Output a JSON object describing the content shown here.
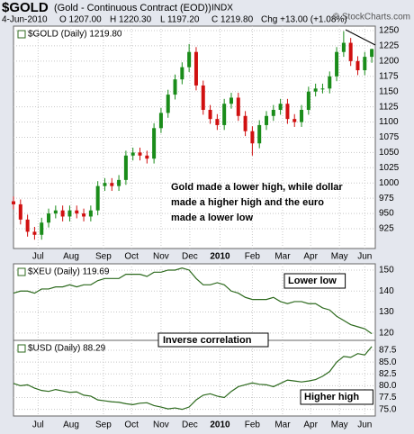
{
  "header": {
    "symbol": "$GOLD",
    "name": "(Gold - Continuous Contract (EOD))",
    "exchange": "INDX",
    "date": "4-Jun-2010",
    "open": "O 1207.00",
    "high": "H 1220.30",
    "low": "L 1197.20",
    "close": "C 1219.80",
    "change": "Chg +13.00 (+1.08%)",
    "credit": "© StockCharts.com"
  },
  "annotations": [
    "Inverse correlation"
  ],
  "chart_data": [
    {
      "type": "candlestick",
      "label": "$GOLD (Daily) 1219.80",
      "up_color": "#1a8c1a",
      "down_color": "#d01010",
      "annotation_lines": [
        "Gold made a lower high, while dollar",
        "made a higher high and the euro",
        "made a lower low"
      ],
      "x": [
        0,
        1,
        2,
        3,
        4,
        5,
        6,
        7,
        8,
        9,
        10,
        11,
        12,
        13,
        14,
        15,
        16,
        17,
        18,
        19,
        20,
        21,
        22,
        23,
        24,
        25,
        26,
        27,
        28,
        29,
        30,
        31,
        32,
        33,
        34,
        35,
        36,
        37,
        38,
        39,
        40,
        41,
        42,
        43,
        44,
        45,
        46,
        47,
        48,
        49,
        50,
        51
      ],
      "open": [
        970,
        965,
        940,
        920,
        915,
        935,
        950,
        955,
        945,
        955,
        950,
        945,
        955,
        995,
        1000,
        995,
        1005,
        1045,
        1050,
        1045,
        1040,
        1090,
        1115,
        1145,
        1170,
        1190,
        1215,
        1160,
        1120,
        1105,
        1095,
        1130,
        1140,
        1110,
        1085,
        1065,
        1095,
        1110,
        1120,
        1130,
        1105,
        1100,
        1120,
        1150,
        1155,
        1155,
        1175,
        1215,
        1230,
        1200,
        1185,
        1207
      ],
      "high": [
        978,
        973,
        948,
        928,
        943,
        958,
        963,
        963,
        963,
        963,
        958,
        963,
        1003,
        1008,
        1008,
        1013,
        1053,
        1058,
        1058,
        1053,
        1098,
        1123,
        1153,
        1178,
        1198,
        1228,
        1223,
        1168,
        1128,
        1113,
        1138,
        1148,
        1148,
        1118,
        1093,
        1103,
        1118,
        1128,
        1138,
        1138,
        1113,
        1128,
        1158,
        1163,
        1163,
        1183,
        1223,
        1249,
        1238,
        1208,
        1215,
        1220.3
      ],
      "low": [
        957,
        932,
        912,
        907,
        907,
        927,
        942,
        937,
        937,
        942,
        937,
        937,
        947,
        987,
        987,
        987,
        997,
        1037,
        1037,
        1032,
        1032,
        1082,
        1107,
        1137,
        1162,
        1182,
        1152,
        1112,
        1097,
        1087,
        1087,
        1122,
        1102,
        1077,
        1045,
        1057,
        1087,
        1102,
        1112,
        1097,
        1092,
        1092,
        1112,
        1142,
        1147,
        1147,
        1167,
        1207,
        1192,
        1177,
        1177,
        1197.2
      ],
      "close": [
        965,
        940,
        920,
        915,
        935,
        950,
        955,
        945,
        955,
        950,
        945,
        955,
        995,
        1000,
        995,
        1005,
        1045,
        1050,
        1045,
        1040,
        1090,
        1115,
        1145,
        1170,
        1190,
        1215,
        1160,
        1120,
        1105,
        1095,
        1130,
        1140,
        1110,
        1085,
        1065,
        1095,
        1110,
        1120,
        1130,
        1105,
        1100,
        1120,
        1150,
        1155,
        1155,
        1175,
        1215,
        1230,
        1200,
        1185,
        1207,
        1219.8
      ],
      "xlim": [
        0,
        51.5
      ],
      "xticks": [
        {
          "value": 3.5,
          "label": "Jul"
        },
        {
          "value": 8.2,
          "label": "Aug"
        },
        {
          "value": 12.8,
          "label": "Sep"
        },
        {
          "value": 16.8,
          "label": "Oct"
        },
        {
          "value": 21,
          "label": "Nov"
        },
        {
          "value": 25.1,
          "label": "Dec"
        },
        {
          "value": 29.4,
          "label": "2010"
        },
        {
          "value": 34,
          "label": "Feb"
        },
        {
          "value": 38.3,
          "label": "Mar"
        },
        {
          "value": 42.3,
          "label": "Apr"
        },
        {
          "value": 46.4,
          "label": "May"
        },
        {
          "value": 50,
          "label": "Jun"
        }
      ],
      "ylim": [
        892.5,
        1257.4
      ],
      "yticks": [
        925,
        950,
        975,
        1000,
        1025,
        1050,
        1075,
        1100,
        1125,
        1150,
        1175,
        1200,
        1225,
        1250
      ],
      "grid": true
    },
    {
      "type": "line",
      "label": "$XEU (Daily) 119.69",
      "annotation_lines": [
        "Lower low"
      ],
      "x": [
        0,
        1,
        2,
        3,
        4,
        5,
        6,
        7,
        8,
        9,
        10,
        11,
        12,
        13,
        14,
        15,
        16,
        17,
        18,
        19,
        20,
        21,
        22,
        23,
        24,
        25,
        26,
        27,
        28,
        29,
        30,
        31,
        32,
        33,
        34,
        35,
        36,
        37,
        38,
        39,
        40,
        41,
        42,
        43,
        44,
        45,
        46,
        47,
        48,
        49,
        50,
        51
      ],
      "series": [
        {
          "name": "$XEU",
          "color": "#2d6a1e",
          "values": [
            139,
            140,
            140,
            139,
            141,
            141,
            142,
            142,
            143,
            142,
            143,
            143,
            145,
            146,
            146,
            146,
            148,
            148,
            148,
            147,
            149,
            149,
            150,
            150,
            151,
            150,
            146,
            143,
            143,
            144,
            143,
            140,
            139,
            137,
            136,
            136,
            136,
            137,
            135,
            134,
            135,
            135,
            134,
            134,
            132,
            131,
            128,
            126,
            124,
            123,
            122,
            119.69
          ]
        }
      ],
      "xlim": [
        0,
        51.5
      ],
      "ylim": [
        116.5,
        153
      ],
      "yticks": [
        120,
        130,
        140,
        150
      ],
      "grid": true
    },
    {
      "type": "line",
      "label": "$USD (Daily) 88.29",
      "annotation_lines": [
        "Higher high"
      ],
      "x": [
        0,
        1,
        2,
        3,
        4,
        5,
        6,
        7,
        8,
        9,
        10,
        11,
        12,
        13,
        14,
        15,
        16,
        17,
        18,
        19,
        20,
        21,
        22,
        23,
        24,
        25,
        26,
        27,
        28,
        29,
        30,
        31,
        32,
        33,
        34,
        35,
        36,
        37,
        38,
        39,
        40,
        41,
        42,
        43,
        44,
        45,
        46,
        47,
        48,
        49,
        50,
        51
      ],
      "series": [
        {
          "name": "$USD",
          "color": "#2d6a1e",
          "values": [
            80.5,
            80.0,
            80.2,
            79.5,
            79.0,
            78.8,
            79.2,
            78.9,
            78.6,
            78.7,
            78.0,
            77.8,
            77.0,
            76.8,
            76.6,
            76.5,
            76.2,
            76.0,
            76.3,
            76.4,
            75.8,
            75.5,
            75.1,
            75.3,
            75.0,
            75.5,
            77.0,
            78.0,
            78.3,
            77.8,
            77.5,
            78.8,
            79.8,
            80.2,
            80.6,
            80.3,
            80.2,
            79.8,
            80.5,
            81.2,
            81.0,
            80.8,
            81.0,
            81.3,
            82.0,
            83.0,
            85.0,
            86.2,
            86.0,
            86.8,
            86.5,
            88.29
          ]
        }
      ],
      "xlim": [
        0,
        51.5
      ],
      "xticks": [
        {
          "value": 3.5,
          "label": "Jul"
        },
        {
          "value": 8.2,
          "label": "Aug"
        },
        {
          "value": 12.8,
          "label": "Sep"
        },
        {
          "value": 16.8,
          "label": "Oct"
        },
        {
          "value": 21,
          "label": "Nov"
        },
        {
          "value": 25.1,
          "label": "Dec"
        },
        {
          "value": 29.4,
          "label": "2010"
        },
        {
          "value": 34,
          "label": "Feb"
        },
        {
          "value": 38.3,
          "label": "Mar"
        },
        {
          "value": 42.3,
          "label": "Apr"
        },
        {
          "value": 46.4,
          "label": "May"
        },
        {
          "value": 50,
          "label": "Jun"
        }
      ],
      "ylim": [
        73.6,
        89.6
      ],
      "yticks": [
        {
          "value": 75,
          "label": "75.0"
        },
        {
          "value": 77.5,
          "label": "77.5"
        },
        {
          "value": 80,
          "label": "80.0"
        },
        {
          "value": 82.5,
          "label": "82.5"
        },
        {
          "value": 85,
          "label": "85.0"
        },
        {
          "value": 87.5,
          "label": "87.5"
        }
      ],
      "grid": true
    }
  ]
}
